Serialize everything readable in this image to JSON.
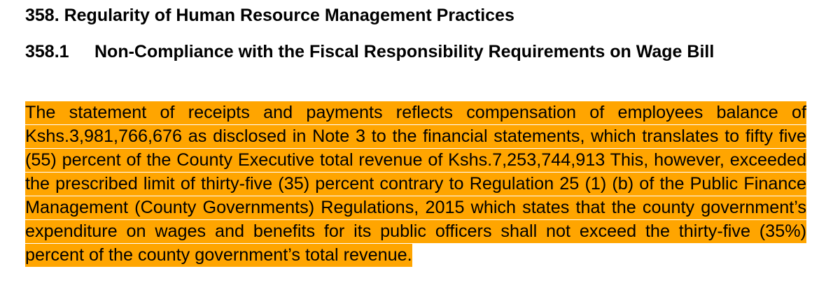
{
  "section": {
    "heading": "358. Regularity of Human Resource Management Practices"
  },
  "subsection": {
    "number": "358.1",
    "title": "Non-Compliance with the Fiscal Responsibility Requirements on Wage Bill"
  },
  "body": {
    "paragraph": "The statement of receipts and payments reflects compensation of employees balance of Kshs.3,981,766,676 as disclosed in Note 3 to the financial statements, which translates to fifty five (55) percent of the County Executive total revenue of Kshs.7,253,744,913 This, however, exceeded the prescribed limit of thirty-five (35) percent contrary to Regulation 25 (1) (b) of the Public Finance Management (County Governments) Regulations, 2015 which states that the county government’s expenditure on wages and benefits for its public officers shall not exceed the thirty-five (35%) percent of the county government’s total revenue.",
    "highlight_color": "#ffa500"
  }
}
